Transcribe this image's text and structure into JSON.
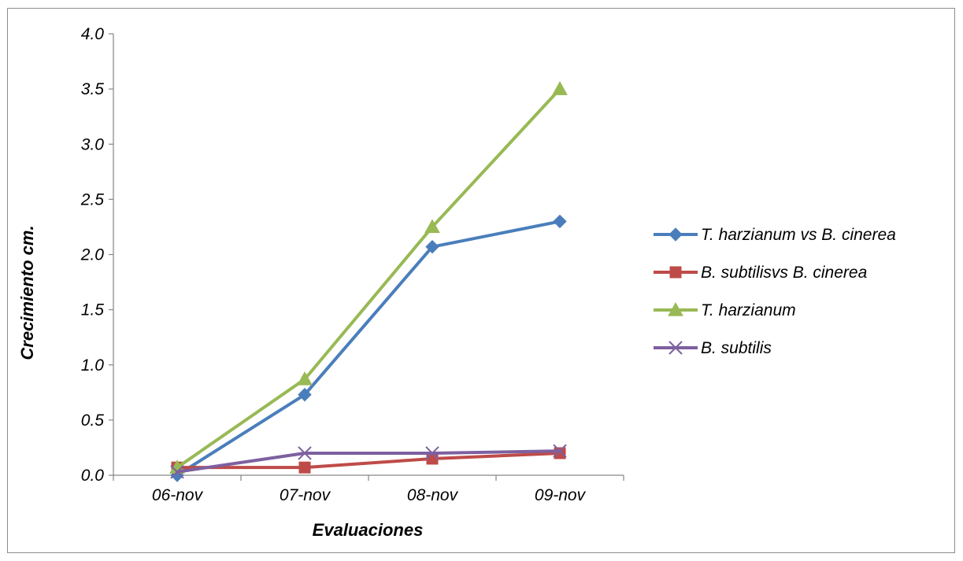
{
  "chart_data": {
    "type": "line",
    "title": "",
    "xlabel": "Evaluaciones",
    "ylabel": "Crecimiento cm.",
    "categories": [
      "06-nov",
      "07-nov",
      "08-nov",
      "09-nov"
    ],
    "ylim": [
      0,
      4.0
    ],
    "yticks": [
      "0.0",
      "0.5",
      "1.0",
      "1.5",
      "2.0",
      "2.5",
      "3.0",
      "3.5",
      "4.0"
    ],
    "grid": false,
    "legend_position": "right",
    "series": [
      {
        "name": "T. harzianum vs B. cinerea",
        "values": [
          0.0,
          0.73,
          2.07,
          2.3
        ],
        "color": "#4a7ebb",
        "marker": "diamond"
      },
      {
        "name": "B. subtilisvs B. cinerea",
        "values": [
          0.07,
          0.07,
          0.15,
          0.2
        ],
        "color": "#be4b48",
        "marker": "square"
      },
      {
        "name": "T. harzianum",
        "values": [
          0.07,
          0.87,
          2.25,
          3.5
        ],
        "color": "#98b954",
        "marker": "triangle"
      },
      {
        "name": "B. subtilis",
        "values": [
          0.03,
          0.2,
          0.2,
          0.22
        ],
        "color": "#7d60a0",
        "marker": "x"
      }
    ]
  }
}
